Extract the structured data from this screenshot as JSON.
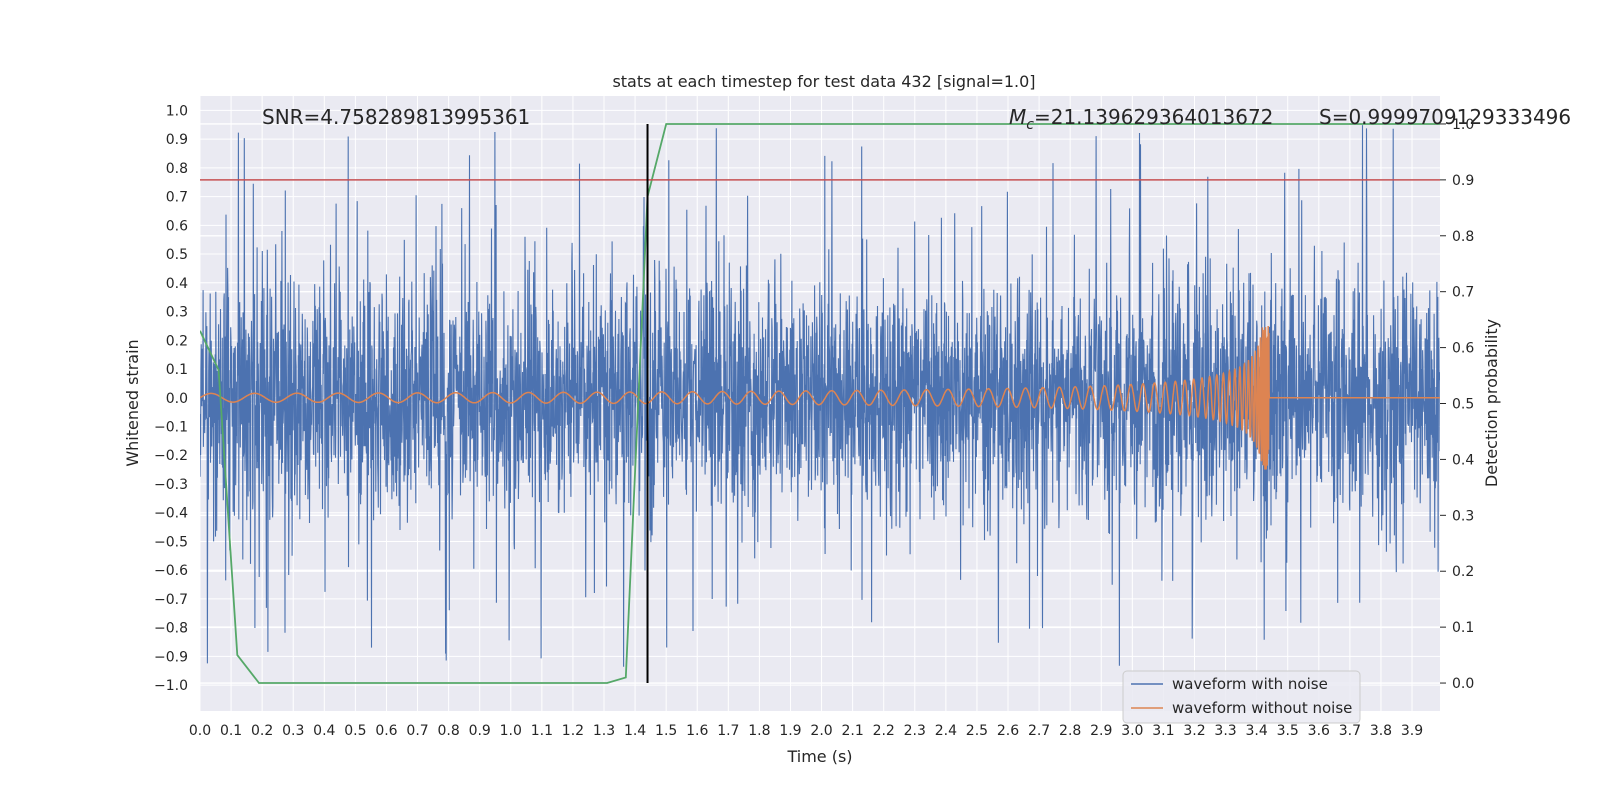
{
  "chart_data": {
    "type": "line",
    "title": "stats at each timestep for test data 432 [signal=1.0]",
    "xlabel": "Time (s)",
    "ylabel": "Whitened strain",
    "y2label": "Detection probability",
    "xlim": [
      0.0,
      3.99
    ],
    "ylim": [
      -1.09,
      1.05
    ],
    "y2lim": [
      -0.05,
      1.05
    ],
    "x_ticks": [
      "0.0",
      "0.1",
      "0.2",
      "0.3",
      "0.4",
      "0.5",
      "0.6",
      "0.7",
      "0.8",
      "0.9",
      "1.0",
      "1.1",
      "1.2",
      "1.3",
      "1.4",
      "1.5",
      "1.6",
      "1.7",
      "1.8",
      "1.9",
      "2.0",
      "2.1",
      "2.2",
      "2.3",
      "2.4",
      "2.5",
      "2.6",
      "2.7",
      "2.8",
      "2.9",
      "3.0",
      "3.1",
      "3.2",
      "3.3",
      "3.4",
      "3.5",
      "3.6",
      "3.7",
      "3.8",
      "3.9"
    ],
    "y_ticks": [
      "1.0",
      "0.9",
      "0.8",
      "0.7",
      "0.6",
      "0.5",
      "0.4",
      "0.3",
      "0.2",
      "0.1",
      "0.0",
      "−0.1",
      "−0.2",
      "−0.3",
      "−0.4",
      "−0.5",
      "−0.6",
      "−0.7",
      "−0.8",
      "−0.9",
      "−1.0"
    ],
    "y2_ticks": [
      "1.0",
      "0.9",
      "0.8",
      "0.7",
      "0.6",
      "0.5",
      "0.4",
      "0.3",
      "0.2",
      "0.1",
      "0.0"
    ],
    "annotations": {
      "snr": "SNR=4.758289813995361",
      "mc_symbol": "M",
      "mc_sub": "c",
      "mc_value": "=21.139629364013672",
      "s": "S=0.9999709129333496"
    },
    "legend": {
      "location": "lower-right",
      "entries": [
        "waveform with noise",
        "waveform without noise"
      ]
    },
    "colors": {
      "noise": "#4c72b0",
      "clean": "#dd8452",
      "probability": "#55a868",
      "threshold": "#c44e52",
      "marker": "#000000",
      "background": "#eaeaf2",
      "grid": "#ffffff"
    },
    "marker_time": 1.44,
    "threshold_probability": 0.9,
    "waveform_noise": {
      "description_values": "noisy whitened strain, amplitude envelope about +/-0.5 with spikes to about +/-0.95",
      "typical_amplitude": 0.5,
      "spike_max": 0.95
    },
    "waveform_clean": {
      "start_amplitude": 0.015,
      "peak_amplitude": 0.25,
      "min_amplitude": -0.27,
      "merger_time": 3.44
    },
    "probability_series": {
      "x": [
        0.0,
        0.06,
        0.12,
        0.19,
        0.25,
        0.31,
        0.37,
        0.44,
        0.5,
        0.56,
        0.62,
        0.69,
        0.75,
        0.81,
        0.87,
        0.94,
        1.0,
        1.06,
        1.12,
        1.19,
        1.25,
        1.31,
        1.37,
        1.44,
        1.5,
        1.56,
        1.62,
        1.69,
        1.75,
        1.81,
        1.87,
        1.94,
        2.0,
        2.06,
        2.12,
        2.19,
        2.25,
        2.31,
        2.37,
        2.44,
        2.5,
        2.56,
        2.62,
        2.69,
        2.75,
        2.81,
        2.87,
        2.94,
        3.0,
        3.06,
        3.12,
        3.19,
        3.25,
        3.31,
        3.37,
        3.44,
        3.5,
        3.56,
        3.62,
        3.69,
        3.75,
        3.81,
        3.87,
        3.94,
        3.99
      ],
      "y": [
        0.63,
        0.56,
        0.05,
        0.0,
        0.0,
        0.0,
        0.0,
        0.0,
        0.0,
        0.0,
        0.0,
        0.0,
        0.0,
        0.0,
        0.0,
        0.0,
        0.0,
        0.0,
        0.0,
        0.0,
        0.0,
        0.0,
        0.01,
        0.87,
        1.0,
        1.0,
        1.0,
        1.0,
        1.0,
        1.0,
        1.0,
        1.0,
        1.0,
        1.0,
        1.0,
        1.0,
        1.0,
        1.0,
        1.0,
        1.0,
        1.0,
        1.0,
        1.0,
        1.0,
        1.0,
        1.0,
        1.0,
        1.0,
        1.0,
        1.0,
        1.0,
        1.0,
        1.0,
        1.0,
        1.0,
        1.0,
        1.0,
        1.0,
        1.0,
        1.0,
        1.0,
        1.0,
        1.0,
        1.0,
        1.0
      ]
    }
  }
}
